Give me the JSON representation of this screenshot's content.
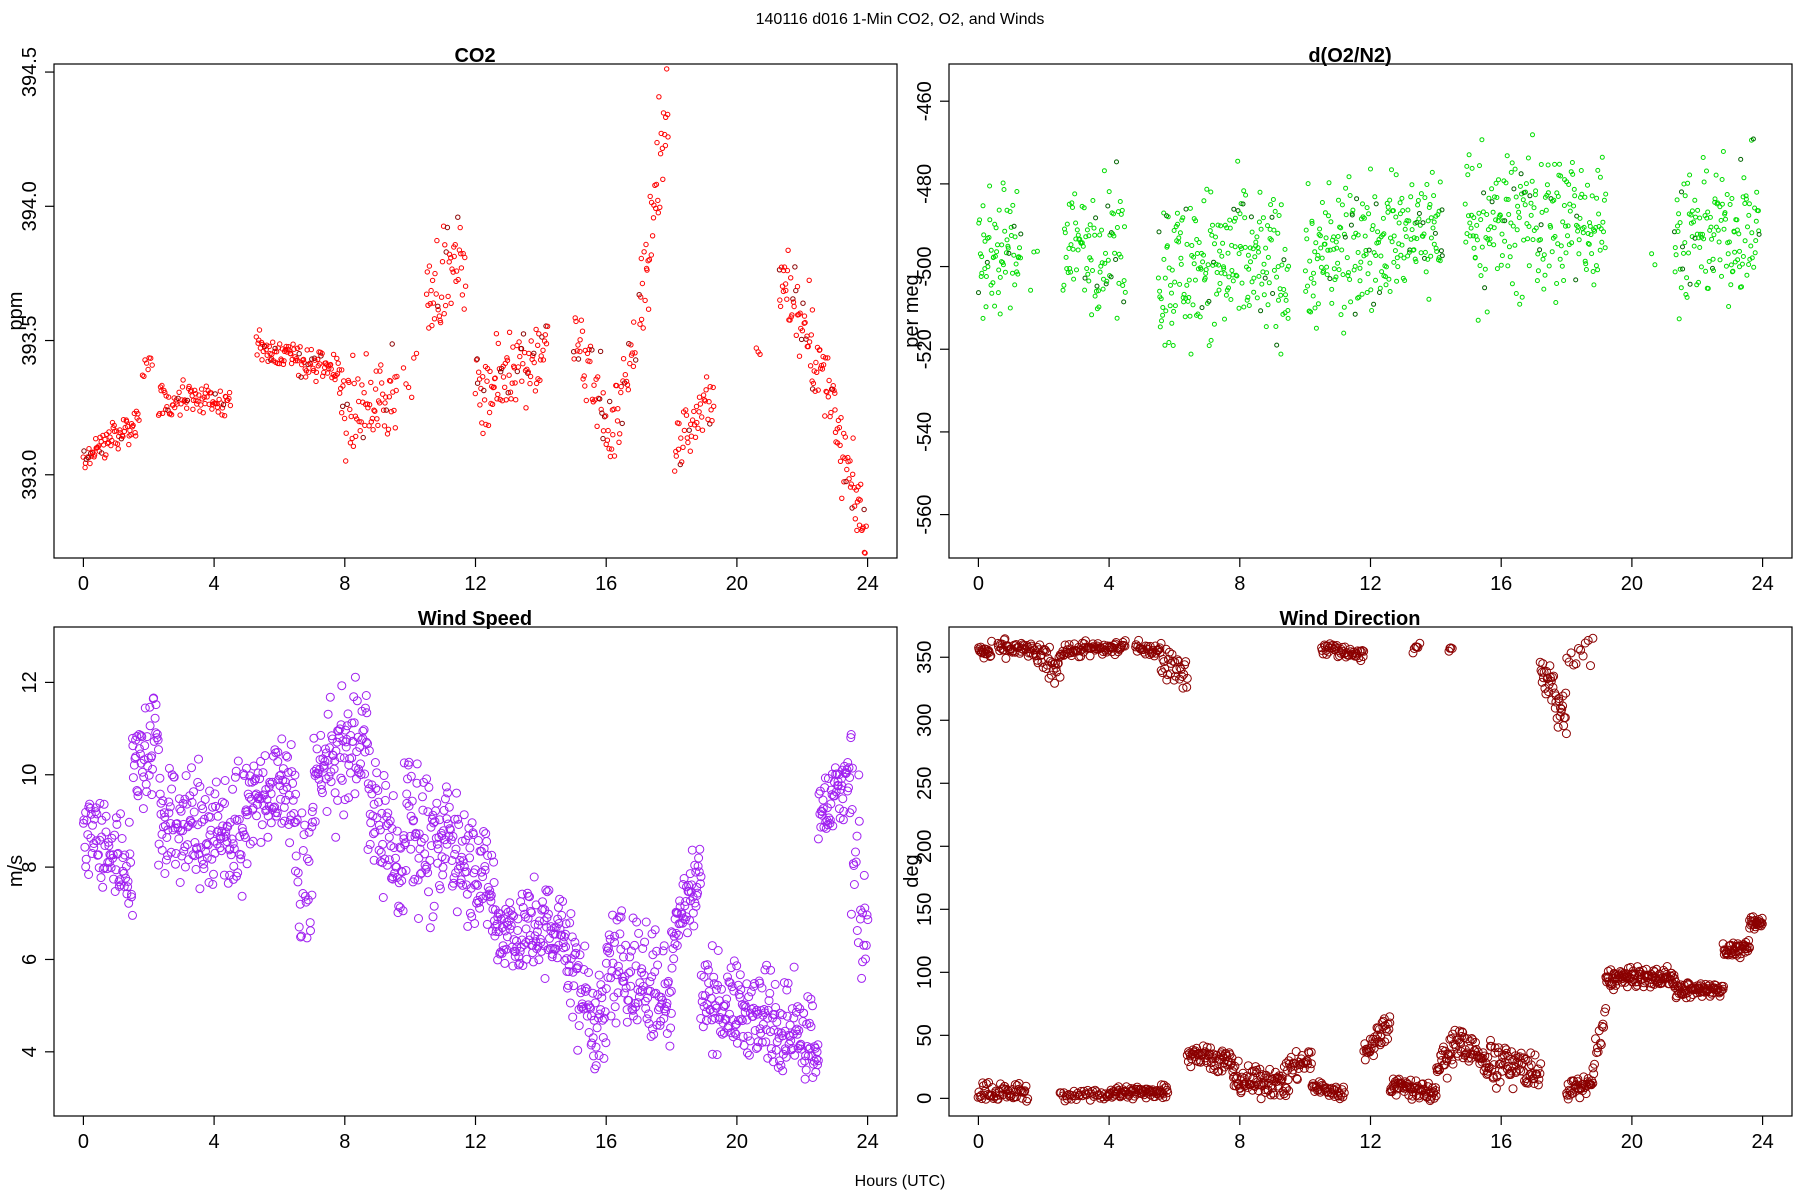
{
  "figure": {
    "title": "140116   d016   1-Min CO2, O2, and Winds",
    "xlabel": "Hours (UTC)"
  },
  "chart_data": [
    {
      "id": "co2",
      "type": "scatter",
      "title": "CO2",
      "xlabel": "",
      "ylabel": "ppm",
      "xlim": [
        -0.9,
        24.9
      ],
      "ylim": [
        392.69,
        394.53
      ],
      "xticks": [
        0,
        4,
        8,
        12,
        16,
        20,
        24
      ],
      "yticks": [
        393.0,
        393.5,
        394.0,
        394.5
      ],
      "ytick_labels": [
        "393.0",
        "393.5",
        "394.0",
        "394.5"
      ],
      "color": "#ff0000",
      "dark_color": "#8b0000",
      "segments": [
        {
          "x": [
            0.0,
            1.7
          ],
          "y": [
            393.06,
            393.2
          ],
          "n": 70,
          "spread": 0.03
        },
        {
          "x": [
            1.8,
            2.1
          ],
          "y": [
            393.35,
            393.48
          ],
          "n": 8,
          "spread": 0.04
        },
        {
          "x": [
            2.3,
            4.5
          ],
          "y": [
            393.28,
            393.28
          ],
          "n": 85,
          "spread": 0.03
        },
        {
          "x": [
            5.3,
            7.9
          ],
          "y": [
            393.48,
            393.38
          ],
          "n": 110,
          "spread": 0.03
        },
        {
          "x": [
            7.9,
            9.6
          ],
          "y": [
            393.22,
            393.3
          ],
          "n": 70,
          "spread": 0.08
        },
        {
          "x": [
            9.8,
            10.2
          ],
          "y": [
            393.32,
            393.38
          ],
          "n": 6,
          "spread": 0.05
        },
        {
          "x": [
            10.5,
            11.7
          ],
          "y": [
            393.68,
            393.8
          ],
          "n": 50,
          "spread": 0.08
        },
        {
          "x": [
            12.0,
            14.2
          ],
          "y": [
            393.3,
            393.48
          ],
          "n": 95,
          "spread": 0.07
        },
        {
          "x": [
            15.0,
            15.9
          ],
          "y": [
            393.5,
            393.3
          ],
          "n": 35,
          "spread": 0.08
        },
        {
          "x": [
            15.9,
            16.9
          ],
          "y": [
            393.1,
            393.45
          ],
          "n": 40,
          "spread": 0.08
        },
        {
          "x": [
            17.0,
            17.9
          ],
          "y": [
            393.6,
            394.4
          ],
          "n": 40,
          "spread": 0.14
        },
        {
          "x": [
            18.1,
            19.3
          ],
          "y": [
            393.1,
            393.3
          ],
          "n": 45,
          "spread": 0.06
        },
        {
          "x": [
            20.6,
            20.7
          ],
          "y": [
            393.45,
            393.45
          ],
          "n": 3,
          "spread": 0.02
        },
        {
          "x": [
            21.3,
            22.3
          ],
          "y": [
            393.7,
            393.55
          ],
          "n": 45,
          "spread": 0.08
        },
        {
          "x": [
            22.3,
            23.0
          ],
          "y": [
            393.4,
            393.3
          ],
          "n": 30,
          "spread": 0.06
        },
        {
          "x": [
            23.0,
            23.95
          ],
          "y": [
            393.15,
            392.8
          ],
          "n": 45,
          "spread": 0.07
        }
      ]
    },
    {
      "id": "o2",
      "type": "scatter",
      "title": "d(O2/N2)",
      "xlabel": "",
      "ylabel": "per meg",
      "xlim": [
        -0.9,
        24.9
      ],
      "ylim": [
        -570.5,
        -451.0
      ],
      "xticks": [
        0,
        4,
        8,
        12,
        16,
        20,
        24
      ],
      "yticks": [
        -560,
        -540,
        -520,
        -500,
        -480,
        -460
      ],
      "ytick_labels": [
        "-560",
        "-540",
        "-520",
        "-500",
        "-480",
        "-460"
      ],
      "color": "#00dd00",
      "dark_color": "#006400",
      "segments": [
        {
          "x": [
            0.0,
            1.3
          ],
          "y": [
            -497,
            -497
          ],
          "n": 70,
          "spread": 7
        },
        {
          "x": [
            1.6,
            1.8
          ],
          "y": [
            -495,
            -495
          ],
          "n": 3,
          "spread": 5
        },
        {
          "x": [
            2.6,
            4.5
          ],
          "y": [
            -495,
            -495
          ],
          "n": 95,
          "spread": 8
        },
        {
          "x": [
            5.5,
            9.5
          ],
          "y": [
            -500,
            -500
          ],
          "n": 220,
          "spread": 9
        },
        {
          "x": [
            10.0,
            14.2
          ],
          "y": [
            -500,
            -490
          ],
          "n": 230,
          "spread": 8
        },
        {
          "x": [
            14.9,
            19.2
          ],
          "y": [
            -490,
            -488
          ],
          "n": 220,
          "spread": 9
        },
        {
          "x": [
            20.6,
            20.7
          ],
          "y": [
            -499,
            -499
          ],
          "n": 2,
          "spread": 1
        },
        {
          "x": [
            21.3,
            23.9
          ],
          "y": [
            -493,
            -490
          ],
          "n": 140,
          "spread": 8
        }
      ]
    },
    {
      "id": "speed",
      "type": "scatter",
      "title": "Wind Speed",
      "xlabel": "",
      "ylabel": "m/s",
      "xlim": [
        -0.9,
        24.9
      ],
      "ylim": [
        2.61,
        13.2
      ],
      "xticks": [
        0,
        4,
        8,
        12,
        16,
        20,
        24
      ],
      "yticks": [
        4,
        6,
        8,
        10,
        12
      ],
      "ytick_labels": [
        "4",
        "6",
        "8",
        "10",
        "12"
      ],
      "color": "#a020f0",
      "dark_color": "#a020f0",
      "segments": [
        {
          "x": [
            0.0,
            1.5
          ],
          "y": [
            8.8,
            8.0
          ],
          "n": 80,
          "spread": 0.5
        },
        {
          "x": [
            1.5,
            2.3
          ],
          "y": [
            10.2,
            11.0
          ],
          "n": 45,
          "spread": 0.6
        },
        {
          "x": [
            2.3,
            5.0
          ],
          "y": [
            9.0,
            8.7
          ],
          "n": 160,
          "spread": 0.7
        },
        {
          "x": [
            5.0,
            6.5
          ],
          "y": [
            9.5,
            9.7
          ],
          "n": 90,
          "spread": 0.5
        },
        {
          "x": [
            6.5,
            7.0
          ],
          "y": [
            7.2,
            8.0
          ],
          "n": 25,
          "spread": 0.9
        },
        {
          "x": [
            7.0,
            8.7
          ],
          "y": [
            9.8,
            11.0
          ],
          "n": 100,
          "spread": 0.6
        },
        {
          "x": [
            8.7,
            9.8
          ],
          "y": [
            9.5,
            7.8
          ],
          "n": 65,
          "spread": 0.6
        },
        {
          "x": [
            9.8,
            11.0
          ],
          "y": [
            9.5,
            8.0
          ],
          "n": 70,
          "spread": 0.8
        },
        {
          "x": [
            11.0,
            12.6
          ],
          "y": [
            8.8,
            7.5
          ],
          "n": 95,
          "spread": 0.6
        },
        {
          "x": [
            12.6,
            14.8
          ],
          "y": [
            6.6,
            6.5
          ],
          "n": 130,
          "spread": 0.5
        },
        {
          "x": [
            14.8,
            16.0
          ],
          "y": [
            6.0,
            4.2
          ],
          "n": 70,
          "spread": 0.6
        },
        {
          "x": [
            16.0,
            18.0
          ],
          "y": [
            6.0,
            5.0
          ],
          "n": 115,
          "spread": 0.6
        },
        {
          "x": [
            18.0,
            18.9
          ],
          "y": [
            6.5,
            8.0
          ],
          "n": 55,
          "spread": 0.4
        },
        {
          "x": [
            18.9,
            22.5
          ],
          "y": [
            5.2,
            4.3
          ],
          "n": 210,
          "spread": 0.5
        },
        {
          "x": [
            22.5,
            23.5
          ],
          "y": [
            9.0,
            10.2
          ],
          "n": 60,
          "spread": 0.4
        },
        {
          "x": [
            23.5,
            24.0
          ],
          "y": [
            8.5,
            6.5
          ],
          "n": 25,
          "spread": 1.0
        }
      ]
    },
    {
      "id": "direction",
      "type": "scatter",
      "title": "Wind Direction",
      "xlabel": "",
      "ylabel": "deg",
      "xlim": [
        -0.9,
        24.9
      ],
      "ylim": [
        -14.0,
        374.0
      ],
      "xticks": [
        0,
        4,
        8,
        12,
        16,
        20,
        24
      ],
      "yticks": [
        0,
        50,
        100,
        150,
        200,
        250,
        300,
        350
      ],
      "ytick_labels": [
        "0",
        "50",
        "100",
        "150",
        "200",
        "250",
        "300",
        "350"
      ],
      "color": "#8b0000",
      "dark_color": "#8b0000",
      "segments": [
        {
          "x": [
            0.0,
            0.4
          ],
          "y": [
            355,
            352
          ],
          "n": 20,
          "spread": 4
        },
        {
          "x": [
            0.6,
            1.8
          ],
          "y": [
            358,
            355
          ],
          "n": 50,
          "spread": 3
        },
        {
          "x": [
            1.8,
            2.5
          ],
          "y": [
            350,
            340
          ],
          "n": 30,
          "spread": 6
        },
        {
          "x": [
            2.5,
            4.5
          ],
          "y": [
            355,
            358
          ],
          "n": 80,
          "spread": 3
        },
        {
          "x": [
            4.8,
            5.6
          ],
          "y": [
            358,
            355
          ],
          "n": 30,
          "spread": 3
        },
        {
          "x": [
            5.6,
            6.4
          ],
          "y": [
            350,
            335
          ],
          "n": 30,
          "spread": 6
        },
        {
          "x": [
            10.5,
            11.8
          ],
          "y": [
            358,
            352
          ],
          "n": 50,
          "spread": 3
        },
        {
          "x": [
            13.3,
            13.5
          ],
          "y": [
            358,
            358
          ],
          "n": 6,
          "spread": 2
        },
        {
          "x": [
            14.4,
            14.5
          ],
          "y": [
            358,
            352
          ],
          "n": 4,
          "spread": 4
        },
        {
          "x": [
            17.2,
            18.0
          ],
          "y": [
            340,
            300
          ],
          "n": 40,
          "spread": 10
        },
        {
          "x": [
            18.0,
            18.8
          ],
          "y": [
            340,
            358
          ],
          "n": 12,
          "spread": 8
        },
        {
          "x": [
            0.0,
            1.5
          ],
          "y": [
            5,
            5
          ],
          "n": 60,
          "spread": 4
        },
        {
          "x": [
            2.5,
            4.0
          ],
          "y": [
            2,
            3
          ],
          "n": 40,
          "spread": 2
        },
        {
          "x": [
            4.0,
            5.8
          ],
          "y": [
            4,
            6
          ],
          "n": 80,
          "spread": 3
        },
        {
          "x": [
            6.4,
            7.8
          ],
          "y": [
            38,
            28
          ],
          "n": 70,
          "spread": 5
        },
        {
          "x": [
            7.8,
            9.5
          ],
          "y": [
            15,
            12
          ],
          "n": 90,
          "spread": 6
        },
        {
          "x": [
            9.5,
            10.2
          ],
          "y": [
            25,
            30
          ],
          "n": 30,
          "spread": 6
        },
        {
          "x": [
            10.2,
            11.2
          ],
          "y": [
            10,
            3
          ],
          "n": 40,
          "spread": 3
        },
        {
          "x": [
            11.8,
            12.6
          ],
          "y": [
            35,
            62
          ],
          "n": 40,
          "spread": 6
        },
        {
          "x": [
            12.6,
            14.0
          ],
          "y": [
            12,
            3
          ],
          "n": 70,
          "spread": 4
        },
        {
          "x": [
            14.0,
            14.8
          ],
          "y": [
            20,
            50
          ],
          "n": 40,
          "spread": 7
        },
        {
          "x": [
            14.8,
            15.6
          ],
          "y": [
            45,
            25
          ],
          "n": 40,
          "spread": 7
        },
        {
          "x": [
            15.6,
            17.2
          ],
          "y": [
            30,
            22
          ],
          "n": 80,
          "spread": 8
        },
        {
          "x": [
            18.0,
            18.8
          ],
          "y": [
            5,
            12
          ],
          "n": 40,
          "spread": 4
        },
        {
          "x": [
            18.8,
            19.2
          ],
          "y": [
            25,
            60
          ],
          "n": 15,
          "spread": 8
        },
        {
          "x": [
            19.2,
            21.3
          ],
          "y": [
            95,
            96
          ],
          "n": 120,
          "spread": 4
        },
        {
          "x": [
            21.3,
            22.8
          ],
          "y": [
            86,
            86
          ],
          "n": 80,
          "spread": 3
        },
        {
          "x": [
            22.8,
            23.6
          ],
          "y": [
            118,
            118
          ],
          "n": 45,
          "spread": 3
        },
        {
          "x": [
            23.6,
            24.0
          ],
          "y": [
            138,
            140
          ],
          "n": 25,
          "spread": 3
        }
      ]
    }
  ]
}
